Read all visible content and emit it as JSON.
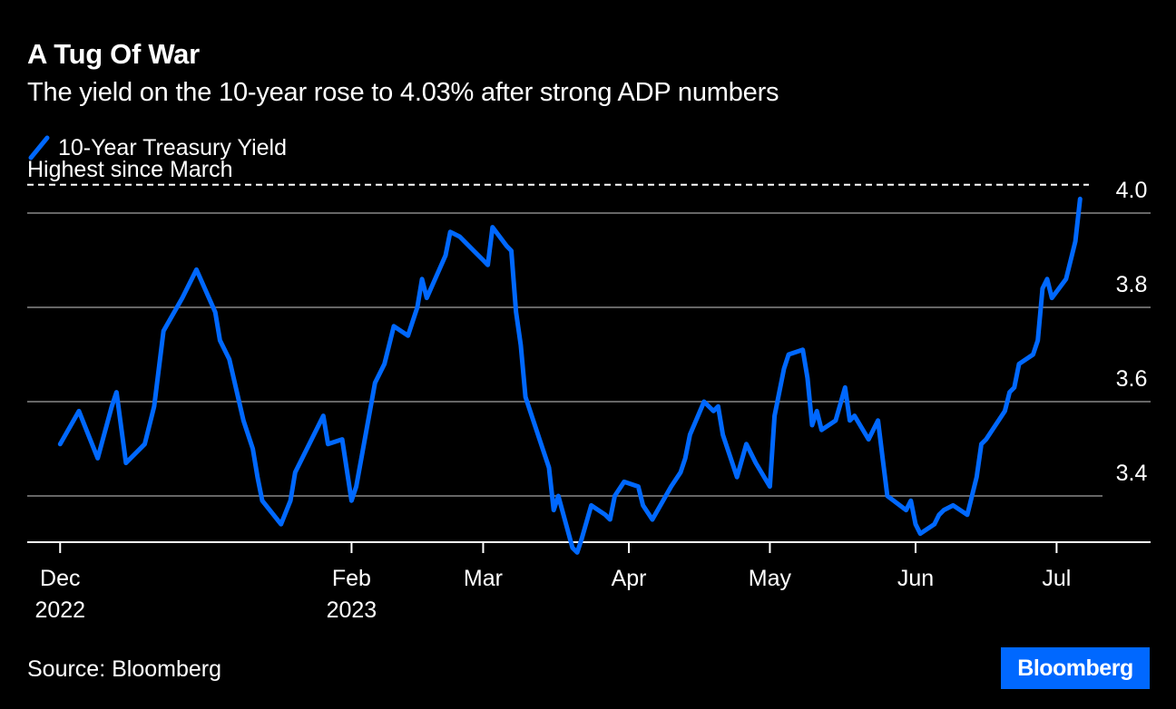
{
  "header": {
    "title": "A Tug Of War",
    "subtitle": "The yield on the 10-year rose to 4.03% after strong ADP numbers"
  },
  "footer": {
    "source": "Source: Bloomberg",
    "brand": "Bloomberg"
  },
  "colors": {
    "background": "#000000",
    "series": "#0068ff",
    "grid": "#666666",
    "text": "#ffffff"
  },
  "chart_data": {
    "type": "line",
    "series": [
      {
        "name": "10-Year Treasury Yield",
        "x": [
          "2022-12-01",
          "2022-12-05",
          "2022-12-07",
          "2022-12-09",
          "2022-12-12",
          "2022-12-13",
          "2022-12-15",
          "2022-12-19",
          "2022-12-21",
          "2022-12-23",
          "2022-12-27",
          "2022-12-30",
          "2023-01-03",
          "2023-01-04",
          "2023-01-06",
          "2023-01-09",
          "2023-01-11",
          "2023-01-12",
          "2023-01-13",
          "2023-01-17",
          "2023-01-19",
          "2023-01-20",
          "2023-01-24",
          "2023-01-26",
          "2023-01-27",
          "2023-01-30",
          "2023-02-01",
          "2023-02-02",
          "2023-02-06",
          "2023-02-08",
          "2023-02-10",
          "2023-02-13",
          "2023-02-15",
          "2023-02-16",
          "2023-02-17",
          "2023-02-21",
          "2023-02-22",
          "2023-02-24",
          "2023-02-27",
          "2023-03-01",
          "2023-03-02",
          "2023-03-03",
          "2023-03-06",
          "2023-03-07",
          "2023-03-08",
          "2023-03-09",
          "2023-03-10",
          "2023-03-13",
          "2023-03-15",
          "2023-03-16",
          "2023-03-17",
          "2023-03-20",
          "2023-03-21",
          "2023-03-22",
          "2023-03-24",
          "2023-03-27",
          "2023-03-28",
          "2023-03-29",
          "2023-03-31",
          "2023-04-03",
          "2023-04-04",
          "2023-04-06",
          "2023-04-10",
          "2023-04-12",
          "2023-04-13",
          "2023-04-14",
          "2023-04-17",
          "2023-04-19",
          "2023-04-20",
          "2023-04-21",
          "2023-04-24",
          "2023-04-26",
          "2023-04-28",
          "2023-05-01",
          "2023-05-02",
          "2023-05-04",
          "2023-05-05",
          "2023-05-08",
          "2023-05-09",
          "2023-05-10",
          "2023-05-11",
          "2023-05-12",
          "2023-05-15",
          "2023-05-17",
          "2023-05-18",
          "2023-05-19",
          "2023-05-22",
          "2023-05-24",
          "2023-05-25",
          "2023-05-26",
          "2023-05-30",
          "2023-05-31",
          "2023-06-01",
          "2023-06-02",
          "2023-06-05",
          "2023-06-06",
          "2023-06-07",
          "2023-06-09",
          "2023-06-12",
          "2023-06-14",
          "2023-06-15",
          "2023-06-16",
          "2023-06-20",
          "2023-06-21",
          "2023-06-22",
          "2023-06-23",
          "2023-06-26",
          "2023-06-27",
          "2023-06-28",
          "2023-06-29",
          "2023-06-30",
          "2023-07-03",
          "2023-07-05",
          "2023-07-06"
        ],
        "values": [
          3.51,
          3.58,
          3.53,
          3.48,
          3.59,
          3.62,
          3.47,
          3.51,
          3.59,
          3.75,
          3.82,
          3.88,
          3.79,
          3.73,
          3.69,
          3.56,
          3.5,
          3.44,
          3.39,
          3.34,
          3.39,
          3.45,
          3.53,
          3.57,
          3.51,
          3.52,
          3.39,
          3.42,
          3.64,
          3.68,
          3.76,
          3.74,
          3.8,
          3.86,
          3.82,
          3.91,
          3.96,
          3.95,
          3.92,
          3.9,
          3.89,
          3.97,
          3.93,
          3.92,
          3.79,
          3.72,
          3.61,
          3.52,
          3.46,
          3.37,
          3.4,
          3.29,
          3.28,
          3.31,
          3.38,
          3.36,
          3.35,
          3.4,
          3.43,
          3.42,
          3.38,
          3.35,
          3.42,
          3.45,
          3.48,
          3.53,
          3.6,
          3.58,
          3.59,
          3.53,
          3.44,
          3.51,
          3.47,
          3.42,
          3.57,
          3.67,
          3.7,
          3.71,
          3.65,
          3.55,
          3.58,
          3.54,
          3.56,
          3.63,
          3.56,
          3.57,
          3.52,
          3.56,
          3.48,
          3.4,
          3.37,
          3.39,
          3.34,
          3.32,
          3.34,
          3.36,
          3.37,
          3.38,
          3.36,
          3.44,
          3.51,
          3.52,
          3.58,
          3.62,
          3.63,
          3.68,
          3.7,
          3.73,
          3.84,
          3.86,
          3.82,
          3.86,
          3.94,
          4.03
        ]
      }
    ],
    "annotations": [
      {
        "text": "Highest since March",
        "y": 4.06,
        "style": "dashed"
      }
    ],
    "yticks": [
      3.4,
      3.6,
      3.8,
      4.0
    ],
    "ylim": [
      3.3,
      4.0
    ],
    "xticks": [
      {
        "date": "2022-12-01",
        "label": "Dec",
        "sublabel": "2022"
      },
      {
        "date": "2023-02-01",
        "label": "Feb",
        "sublabel": "2023"
      },
      {
        "date": "2023-03-01",
        "label": "Mar",
        "sublabel": ""
      },
      {
        "date": "2023-04-01",
        "label": "Apr",
        "sublabel": ""
      },
      {
        "date": "2023-05-01",
        "label": "May",
        "sublabel": ""
      },
      {
        "date": "2023-06-01",
        "label": "Jun",
        "sublabel": ""
      },
      {
        "date": "2023-07-01",
        "label": "Jul",
        "sublabel": ""
      }
    ],
    "xlim": [
      "2022-11-24",
      "2023-07-21"
    ],
    "grid": true,
    "legend_position": "top-left",
    "yaxis_position": "right",
    "title": "A Tug Of War",
    "xlabel": "",
    "ylabel": ""
  }
}
